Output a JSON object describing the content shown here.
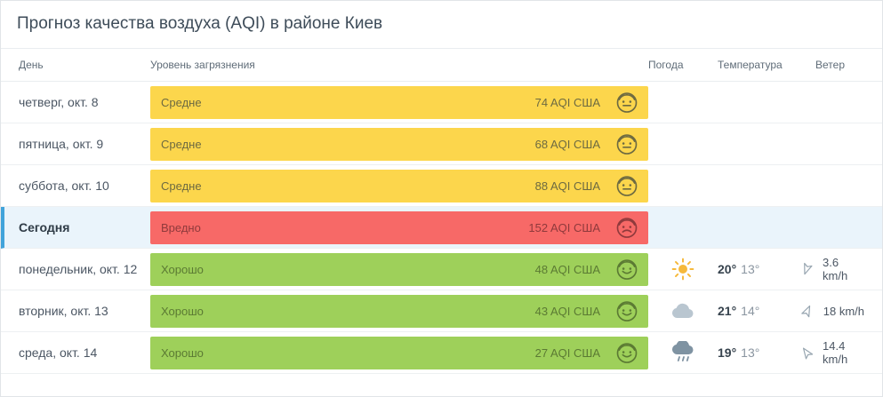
{
  "title": "Прогноз качества воздуха (AQI) в районе Киев",
  "table": {
    "headers": {
      "day": "День",
      "pollution": "Уровень загрязнения",
      "weather": "Погода",
      "temperature": "Температура",
      "wind": "Ветер"
    },
    "rows": [
      {
        "day": "четверг, окт. 8",
        "level": "Средне",
        "aqi": "74 AQI США",
        "category": "moderate",
        "today": false,
        "weather": "",
        "temp_max": "",
        "temp_min": "",
        "wind_speed": "",
        "wind_rotation": 0
      },
      {
        "day": "пятница, окт. 9",
        "level": "Средне",
        "aqi": "68 AQI США",
        "category": "moderate",
        "today": false,
        "weather": "",
        "temp_max": "",
        "temp_min": "",
        "wind_speed": "",
        "wind_rotation": 0
      },
      {
        "day": "суббота, окт. 10",
        "level": "Средне",
        "aqi": "88 AQI США",
        "category": "moderate",
        "today": false,
        "weather": "",
        "temp_max": "",
        "temp_min": "",
        "wind_speed": "",
        "wind_rotation": 0
      },
      {
        "day": "Сегодня",
        "level": "Вредно",
        "aqi": "152 AQI США",
        "category": "unhealthy",
        "today": true,
        "weather": "",
        "temp_max": "",
        "temp_min": "",
        "wind_speed": "",
        "wind_rotation": 0
      },
      {
        "day": "понедельник, окт. 12",
        "level": "Хорошо",
        "aqi": "48 AQI США",
        "category": "good",
        "today": false,
        "weather": "sun",
        "temp_max": "20°",
        "temp_min": "13°",
        "wind_speed": "3.6 km/h",
        "wind_rotation": 200
      },
      {
        "day": "вторник, окт. 13",
        "level": "Хорошо",
        "aqi": "43 AQI США",
        "category": "good",
        "today": false,
        "weather": "cloud",
        "temp_max": "21°",
        "temp_min": "14°",
        "wind_speed": "18 km/h",
        "wind_rotation": 25
      },
      {
        "day": "среда, окт. 14",
        "level": "Хорошо",
        "aqi": "27 AQI США",
        "category": "good",
        "today": false,
        "weather": "rain",
        "temp_max": "19°",
        "temp_min": "13°",
        "wind_speed": "14.4 km/h",
        "wind_rotation": -35
      }
    ]
  },
  "colors": {
    "moderate_bg": "#fcd64c",
    "moderate_text": "#6d6a41",
    "unhealthy_bg": "#f76967",
    "unhealthy_text": "#8f3a3c",
    "good_bg": "#9ed05a",
    "good_text": "#5b7a33",
    "today_highlight_bg": "#eaf4fb",
    "today_accent": "#41a3da",
    "sun": "#f6b93b",
    "cloud": "#b9c6d0",
    "rain_cloud": "#7f93a2",
    "wind_icon": "#97a5b0"
  }
}
